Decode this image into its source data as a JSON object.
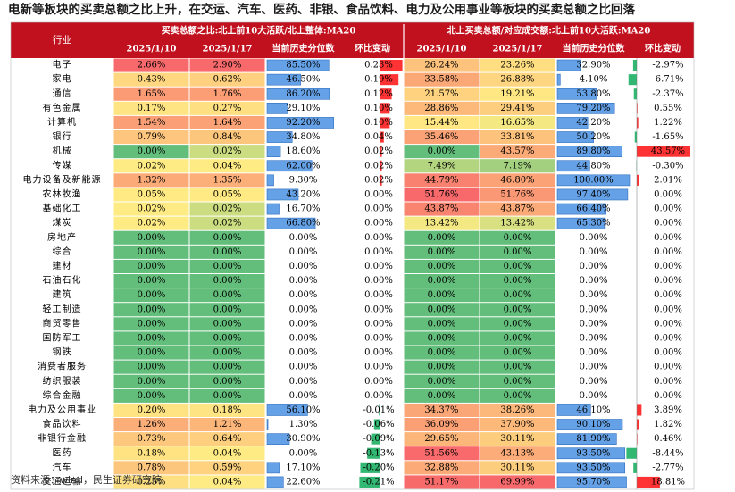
{
  "title": "电新等板块的买卖总额之比上升，在交运、汽车、医药、非银、食品饮料、电力及公用事业等板块的买卖总额之比回落",
  "source": "资料来源：wind，民生证券研究院",
  "colors": {
    "header_red": "#c2111e",
    "pct_high": "#f8696b",
    "pct_mid": "#ffeb84",
    "pct_low": "#63be7b",
    "hist_bar": "#4a90e2",
    "chg_pos": "#ff0000",
    "chg_neg": "#00a650"
  },
  "chart_data": {
    "type": "table",
    "header": {
      "industry": "行业",
      "group_left": "买卖总额之比:北上前10大活跃/北上整体:MA20",
      "group_right": "北上买卖总额/对应成交额:北上前10大活跃:MA20",
      "columns": [
        "2025/1/10",
        "2025/1/17",
        "当前历史分位数",
        "环比变动",
        "2025/1/10",
        "2025/1/17",
        "当前历史分位数",
        "环比变动"
      ]
    },
    "rows": [
      {
        "industry": "电子",
        "a1": "2.66%",
        "a2": "2.90%",
        "ap": "85.50%",
        "ac": "0.23%",
        "b1": "26.24%",
        "b2": "23.26%",
        "bp": "32.90%",
        "bc": "-2.97%"
      },
      {
        "industry": "家电",
        "a1": "0.43%",
        "a2": "0.62%",
        "ap": "46.50%",
        "ac": "0.19%",
        "b1": "33.58%",
        "b2": "26.88%",
        "bp": "4.10%",
        "bc": "-6.71%"
      },
      {
        "industry": "通信",
        "a1": "1.65%",
        "a2": "1.76%",
        "ap": "86.20%",
        "ac": "0.12%",
        "b1": "21.57%",
        "b2": "19.21%",
        "bp": "53.80%",
        "bc": "-2.37%"
      },
      {
        "industry": "有色金属",
        "a1": "0.17%",
        "a2": "0.27%",
        "ap": "29.10%",
        "ac": "0.10%",
        "b1": "28.86%",
        "b2": "29.41%",
        "bp": "79.20%",
        "bc": "0.55%"
      },
      {
        "industry": "计算机",
        "a1": "1.54%",
        "a2": "1.64%",
        "ap": "92.20%",
        "ac": "0.10%",
        "b1": "15.44%",
        "b2": "16.65%",
        "bp": "42.20%",
        "bc": "1.22%"
      },
      {
        "industry": "银行",
        "a1": "0.79%",
        "a2": "0.84%",
        "ap": "34.80%",
        "ac": "0.04%",
        "b1": "35.46%",
        "b2": "33.81%",
        "bp": "50.20%",
        "bc": "-1.65%"
      },
      {
        "industry": "机械",
        "a1": "0.00%",
        "a2": "0.02%",
        "ap": "18.60%",
        "ac": "0.02%",
        "b1": "0.00%",
        "b2": "43.57%",
        "bp": "89.80%",
        "bc": "43.57%"
      },
      {
        "industry": "传媒",
        "a1": "0.02%",
        "a2": "0.04%",
        "ap": "62.00%",
        "ac": "0.02%",
        "b1": "7.49%",
        "b2": "7.19%",
        "bp": "44.80%",
        "bc": "-0.30%"
      },
      {
        "industry": "电力设备及新能源",
        "a1": "1.32%",
        "a2": "1.35%",
        "ap": "9.30%",
        "ac": "0.02%",
        "b1": "44.79%",
        "b2": "46.80%",
        "bp": "100.00%",
        "bc": "2.01%"
      },
      {
        "industry": "农林牧渔",
        "a1": "0.05%",
        "a2": "0.05%",
        "ap": "43.20%",
        "ac": "0.00%",
        "b1": "51.76%",
        "b2": "51.76%",
        "bp": "97.40%",
        "bc": "0.00%"
      },
      {
        "industry": "基础化工",
        "a1": "0.02%",
        "a2": "0.02%",
        "ap": "16.70%",
        "ac": "0.00%",
        "b1": "43.87%",
        "b2": "43.87%",
        "bp": "66.40%",
        "bc": "0.00%"
      },
      {
        "industry": "煤炭",
        "a1": "0.02%",
        "a2": "0.02%",
        "ap": "66.80%",
        "ac": "0.00%",
        "b1": "13.42%",
        "b2": "13.42%",
        "bp": "65.30%",
        "bc": "0.00%"
      },
      {
        "industry": "房地产",
        "a1": "0.00%",
        "a2": "0.00%",
        "ap": "0.00%",
        "ac": "0.00%",
        "b1": "0.00%",
        "b2": "0.00%",
        "bp": "0.00%",
        "bc": "0.00%"
      },
      {
        "industry": "综合",
        "a1": "0.00%",
        "a2": "0.00%",
        "ap": "0.00%",
        "ac": "0.00%",
        "b1": "0.00%",
        "b2": "0.00%",
        "bp": "0.00%",
        "bc": "0.00%"
      },
      {
        "industry": "建材",
        "a1": "0.00%",
        "a2": "0.00%",
        "ap": "0.00%",
        "ac": "0.00%",
        "b1": "0.00%",
        "b2": "0.00%",
        "bp": "0.00%",
        "bc": "0.00%"
      },
      {
        "industry": "石油石化",
        "a1": "0.00%",
        "a2": "0.00%",
        "ap": "0.00%",
        "ac": "0.00%",
        "b1": "0.00%",
        "b2": "0.00%",
        "bp": "0.00%",
        "bc": "0.00%"
      },
      {
        "industry": "建筑",
        "a1": "0.00%",
        "a2": "0.00%",
        "ap": "0.00%",
        "ac": "0.00%",
        "b1": "0.00%",
        "b2": "0.00%",
        "bp": "0.00%",
        "bc": "0.00%"
      },
      {
        "industry": "轻工制造",
        "a1": "0.00%",
        "a2": "0.00%",
        "ap": "0.00%",
        "ac": "0.00%",
        "b1": "0.00%",
        "b2": "0.00%",
        "bp": "0.00%",
        "bc": "0.00%"
      },
      {
        "industry": "商贸零售",
        "a1": "0.00%",
        "a2": "0.00%",
        "ap": "0.00%",
        "ac": "0.00%",
        "b1": "0.00%",
        "b2": "0.00%",
        "bp": "0.00%",
        "bc": "0.00%"
      },
      {
        "industry": "国防军工",
        "a1": "0.00%",
        "a2": "0.00%",
        "ap": "0.00%",
        "ac": "0.00%",
        "b1": "0.00%",
        "b2": "0.00%",
        "bp": "0.00%",
        "bc": "0.00%"
      },
      {
        "industry": "钢铁",
        "a1": "0.00%",
        "a2": "0.00%",
        "ap": "0.00%",
        "ac": "0.00%",
        "b1": "0.00%",
        "b2": "0.00%",
        "bp": "0.00%",
        "bc": "0.00%"
      },
      {
        "industry": "消费者服务",
        "a1": "0.00%",
        "a2": "0.00%",
        "ap": "0.00%",
        "ac": "0.00%",
        "b1": "0.00%",
        "b2": "0.00%",
        "bp": "0.00%",
        "bc": "0.00%"
      },
      {
        "industry": "纺织服装",
        "a1": "0.00%",
        "a2": "0.00%",
        "ap": "0.00%",
        "ac": "0.00%",
        "b1": "0.00%",
        "b2": "0.00%",
        "bp": "0.00%",
        "bc": "0.00%"
      },
      {
        "industry": "综合金融",
        "a1": "0.00%",
        "a2": "0.00%",
        "ap": "0.00%",
        "ac": "0.00%",
        "b1": "0.00%",
        "b2": "0.00%",
        "bp": "0.00%",
        "bc": "0.00%"
      },
      {
        "industry": "电力及公用事业",
        "a1": "0.20%",
        "a2": "0.18%",
        "ap": "56.10%",
        "ac": "-0.01%",
        "b1": "34.37%",
        "b2": "38.26%",
        "bp": "46.10%",
        "bc": "3.89%"
      },
      {
        "industry": "食品饮料",
        "a1": "1.26%",
        "a2": "1.21%",
        "ap": "1.30%",
        "ac": "-0.06%",
        "b1": "36.09%",
        "b2": "37.90%",
        "bp": "90.10%",
        "bc": "1.82%"
      },
      {
        "industry": "非银行金融",
        "a1": "0.73%",
        "a2": "0.64%",
        "ap": "30.90%",
        "ac": "-0.09%",
        "b1": "29.65%",
        "b2": "30.11%",
        "bp": "81.90%",
        "bc": "0.46%"
      },
      {
        "industry": "医药",
        "a1": "0.18%",
        "a2": "0.04%",
        "ap": "0.00%",
        "ac": "-0.13%",
        "b1": "51.56%",
        "b2": "43.13%",
        "bp": "93.50%",
        "bc": "-8.44%"
      },
      {
        "industry": "汽车",
        "a1": "0.78%",
        "a2": "0.59%",
        "ap": "17.10%",
        "ac": "-0.20%",
        "b1": "32.88%",
        "b2": "30.11%",
        "bp": "93.50%",
        "bc": "-2.77%"
      },
      {
        "industry": "交通运输",
        "a1": "0.25%",
        "a2": "0.04%",
        "ap": "22.60%",
        "ac": "-0.21%",
        "b1": "51.17%",
        "b2": "69.99%",
        "bp": "95.70%",
        "bc": "18.81%"
      }
    ]
  }
}
